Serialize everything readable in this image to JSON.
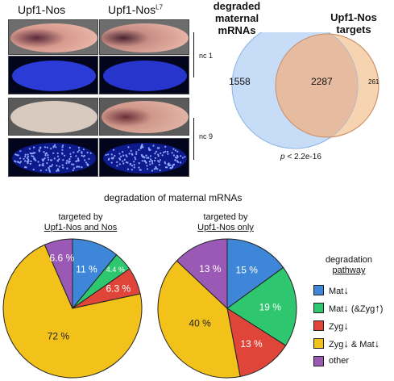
{
  "embryo_panel": {
    "col_labels": [
      "Upf1-Nos",
      "Upf1-Nos"
    ],
    "col2_superscript": "L7",
    "stage_labels": [
      "nc 1",
      "nc 9"
    ]
  },
  "venn": {
    "left_title": "degraded\nmaternal\nmRNAs",
    "right_title": "Upf1-Nos\ntargets",
    "left_only": "1558",
    "overlap": "2287",
    "right_only": "261",
    "pvalue_prefix": "p",
    "pvalue_rest": " < 2.2e-16",
    "colors": {
      "left": "#c6dcf7",
      "right": "#f6d4b2",
      "overlap": "#e6bba0"
    }
  },
  "section_title": "degradation of maternal mRNAs",
  "pie_left": {
    "title_line1": "targeted by",
    "title_line2": "Upf1-Nos and Nos"
  },
  "pie_right": {
    "title_line1": "targeted by",
    "title_line2": "Upf1-Nos only"
  },
  "legend": {
    "title_line1": "degradation",
    "title_line2": "pathway",
    "items": [
      {
        "label": "Mat",
        "color": "#3e87d8"
      },
      {
        "label": "Mat",
        "suffix_pre": "(&Zyg",
        "suffix_post": ")",
        "color": "#2ec66e"
      },
      {
        "label": "Zyg",
        "color": "#e0453a"
      },
      {
        "label": "Zyg",
        "suffix_pre": "& Mat",
        "color": "#f2c21a"
      },
      {
        "label": "other",
        "color": "#9b59b6"
      }
    ]
  },
  "chart_data": [
    {
      "type": "pie",
      "title": "targeted by Upf1-Nos and Nos",
      "categories": [
        "Mat↓",
        "Mat↓ (&Zyg↑)",
        "Zyg↓",
        "Zyg↓ & Mat↓",
        "other"
      ],
      "values": [
        11,
        4.4,
        6.3,
        72,
        6.6
      ],
      "labels": [
        "11 %",
        "4.4 %",
        "6.3 %",
        "72 %",
        "6.6 %"
      ],
      "colors": [
        "#3e87d8",
        "#2ec66e",
        "#e0453a",
        "#f2c21a",
        "#9b59b6"
      ]
    },
    {
      "type": "pie",
      "title": "targeted by Upf1-Nos only",
      "categories": [
        "Mat↓",
        "Mat↓ (&Zyg↑)",
        "Zyg↓",
        "Zyg↓ & Mat↓",
        "other"
      ],
      "values": [
        15,
        19,
        13,
        40,
        13
      ],
      "labels": [
        "15 %",
        "19 %",
        "13 %",
        "40 %",
        "13 %"
      ],
      "colors": [
        "#3e87d8",
        "#2ec66e",
        "#e0453a",
        "#f2c21a",
        "#9b59b6"
      ]
    }
  ]
}
